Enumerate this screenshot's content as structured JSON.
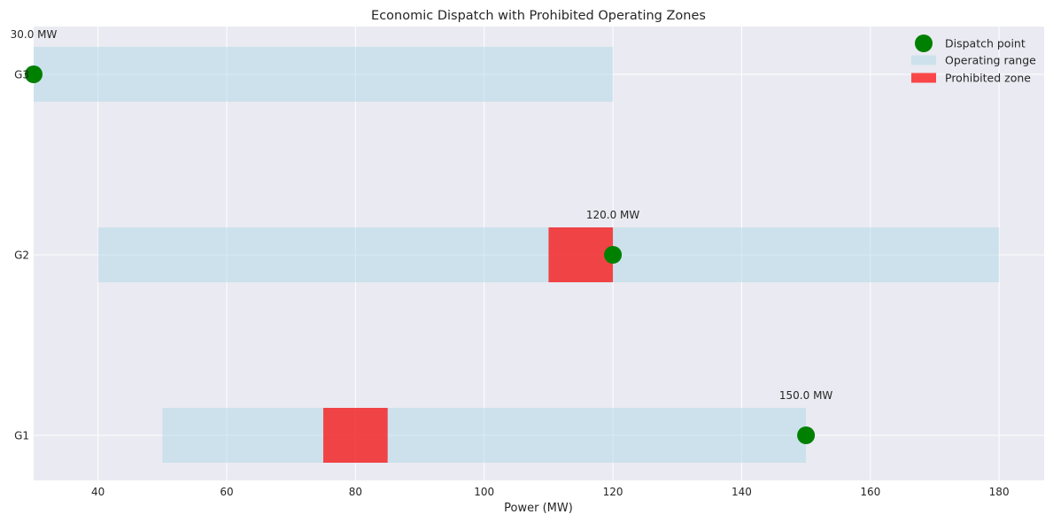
{
  "chart_data": {
    "type": "bar",
    "title": "Economic Dispatch with Prohibited Operating Zones",
    "xlabel": "Power (MW)",
    "ylabel": "",
    "xlim": [
      30,
      187
    ],
    "x_ticks": [
      40,
      60,
      80,
      100,
      120,
      140,
      160,
      180
    ],
    "grid": true,
    "legend_position": "top-right",
    "categories": [
      "G1",
      "G2",
      "G3"
    ],
    "operating_range": [
      {
        "generator": "G1",
        "min": 50,
        "max": 150
      },
      {
        "generator": "G2",
        "min": 40,
        "max": 180
      },
      {
        "generator": "G3",
        "min": 30,
        "max": 120
      }
    ],
    "prohibited_zones": [
      {
        "generator": "G1",
        "from": 75,
        "to": 85
      },
      {
        "generator": "G2",
        "from": 110,
        "to": 120
      }
    ],
    "dispatch_points": [
      {
        "generator": "G1",
        "value": 150,
        "label": "150.0 MW"
      },
      {
        "generator": "G2",
        "value": 120,
        "label": "120.0 MW"
      },
      {
        "generator": "G3",
        "value": 30,
        "label": "30.0 MW"
      }
    ],
    "legend": [
      {
        "key": "dispatch",
        "label": "Dispatch point"
      },
      {
        "key": "range",
        "label": "Operating range"
      },
      {
        "key": "prohibited",
        "label": "Prohibited zone"
      }
    ],
    "colors": {
      "background": "#eaeaf2",
      "grid": "#ffffff",
      "range": "#add8e6",
      "range_opacity": 0.5,
      "prohibited": "#ff0000",
      "prohibited_opacity": 0.7,
      "dispatch": "#008000"
    }
  }
}
